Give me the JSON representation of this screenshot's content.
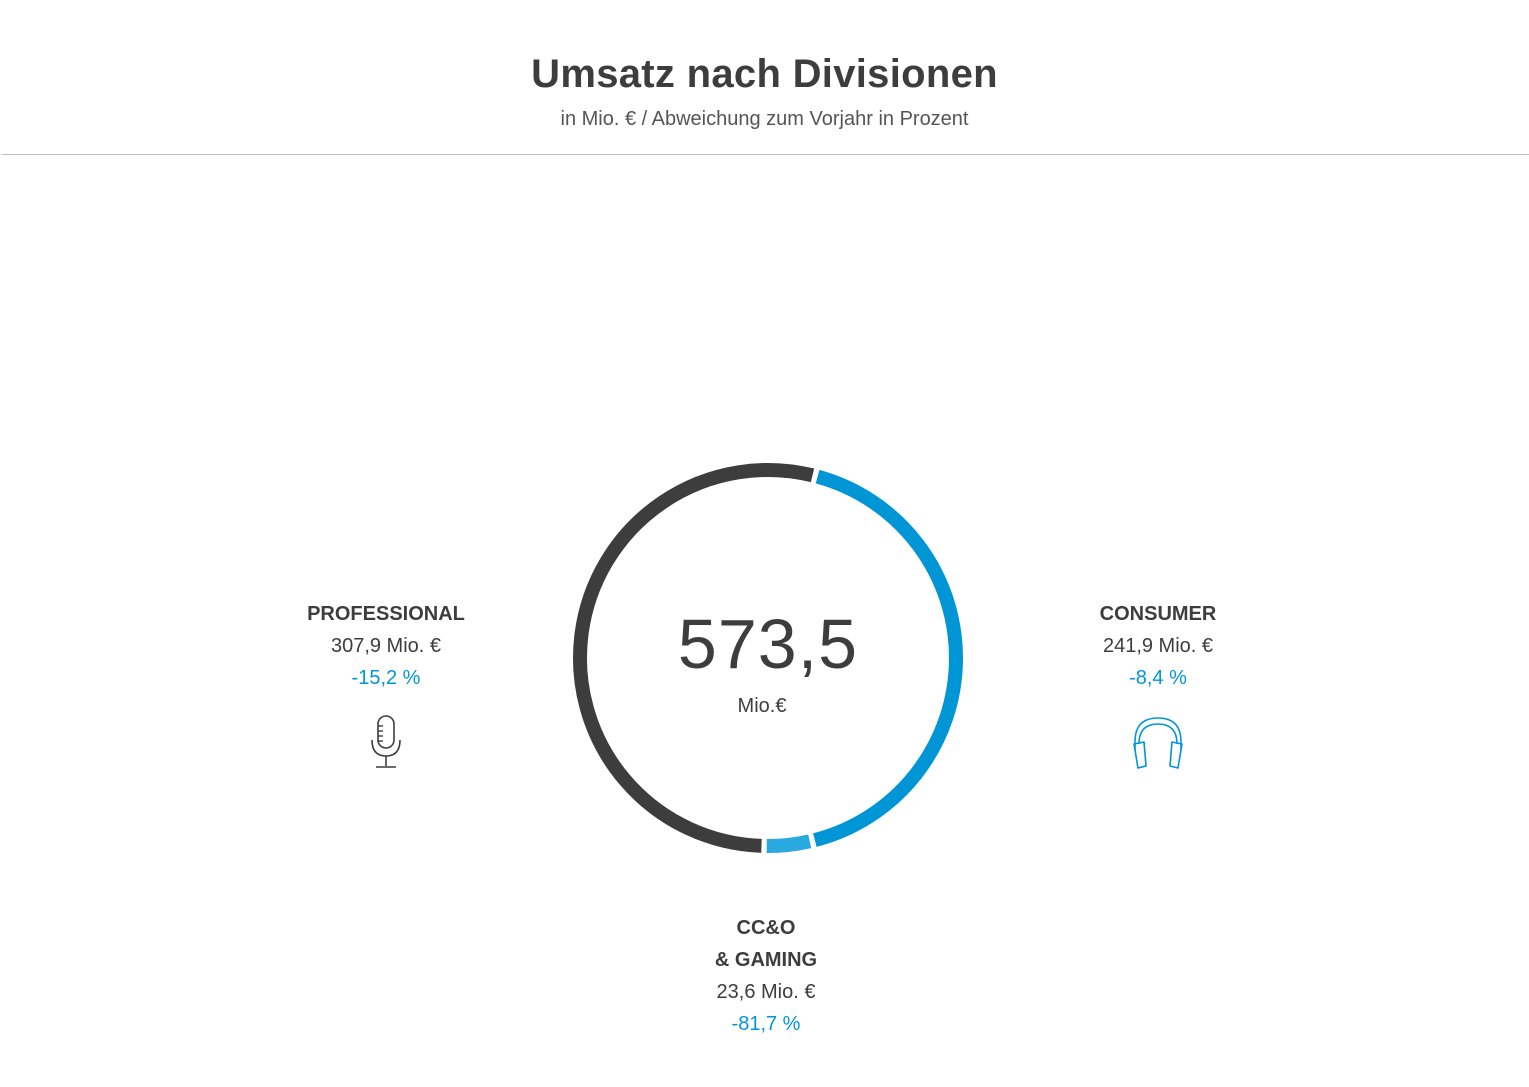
{
  "header": {
    "title": "Umsatz nach Divisionen",
    "subtitle": "in Mio. € / Abweichung zum Vorjahr in Prozent"
  },
  "center": {
    "total": "573,5",
    "unit": "Mio.€"
  },
  "colors": {
    "professional": "#3d3d3d",
    "consumer": "#0096d6",
    "ccgaming": "#2aa8e0",
    "change": "#0096d6"
  },
  "icons": {
    "professional": "microphone-icon",
    "consumer": "headphones-icon"
  },
  "chart_data": {
    "type": "pie",
    "style": "donut",
    "total": 573.5,
    "categories": [
      "PROFESSIONAL",
      "CONSUMER",
      "CC&O & GAMING"
    ],
    "series": [
      {
        "values": [
          307.9,
          241.9,
          23.6
        ]
      }
    ],
    "segments": [
      {
        "id": "professional",
        "name": "PROFESSIONAL",
        "value": 307.9,
        "value_label": "307,9 Mio. €",
        "change": -15.2,
        "change_label": "-15,2 %",
        "color": "#3d3d3d"
      },
      {
        "id": "consumer",
        "name": "CONSUMER",
        "value": 241.9,
        "value_label": "241,9 Mio. €",
        "change": -8.4,
        "change_label": "-8,4 %",
        "color": "#0096d6"
      },
      {
        "id": "ccgaming",
        "name_line1": "CC&O",
        "name_line2": "& GAMING",
        "value": 23.6,
        "value_label": "23,6 Mio. €",
        "change": -81.7,
        "change_label": "-81,7 %",
        "color": "#2aa8e0"
      }
    ],
    "legend": "none",
    "grid": false
  }
}
